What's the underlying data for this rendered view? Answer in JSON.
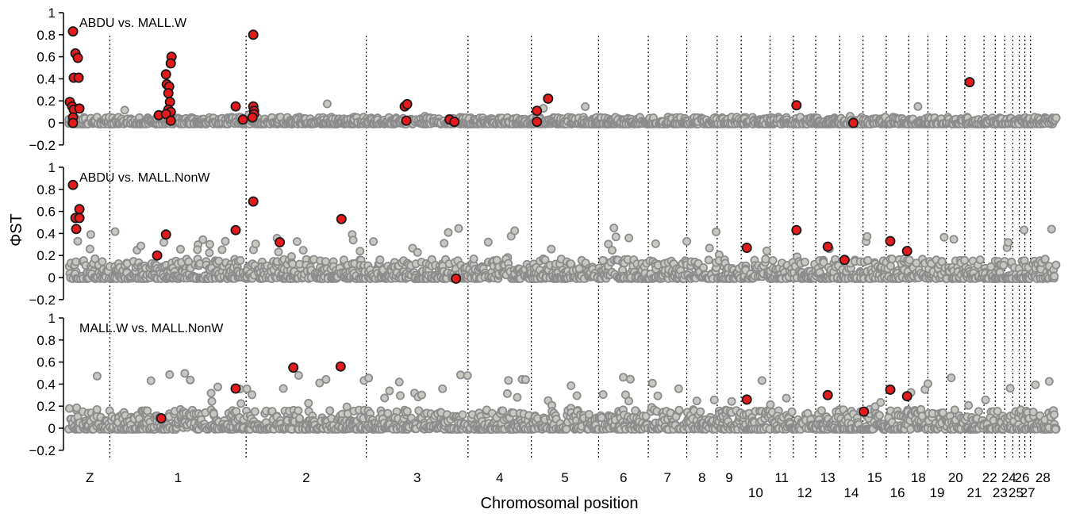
{
  "chart_data": {
    "type": "scatter",
    "xlabel": "Chromosomal position",
    "ylabel": "ΦST",
    "ylim": [
      -0.2,
      1
    ],
    "yticks": [
      "1",
      "0.8",
      "0.6",
      "0.4",
      "0.2",
      "0",
      "−0.2"
    ],
    "colors": {
      "background_point_fill": "#c8c8c2",
      "background_point_stroke": "#8c8c8c",
      "outlier_fill": "#e41a1c",
      "outlier_stroke": "#1a1a1a",
      "boundary_line": "#000000"
    },
    "chromosomes": [
      {
        "name": "Z",
        "start": 0,
        "end": 50,
        "label_row": 1
      },
      {
        "name": "1",
        "start": 50,
        "end": 220,
        "label_row": 1
      },
      {
        "name": "2",
        "start": 220,
        "end": 370,
        "label_row": 1
      },
      {
        "name": "3",
        "start": 370,
        "end": 497,
        "label_row": 1
      },
      {
        "name": "4",
        "start": 497,
        "end": 576,
        "label_row": 1
      },
      {
        "name": "5",
        "start": 576,
        "end": 660,
        "label_row": 1
      },
      {
        "name": "6",
        "start": 660,
        "end": 722,
        "label_row": 1
      },
      {
        "name": "7",
        "start": 722,
        "end": 770,
        "label_row": 1
      },
      {
        "name": "8",
        "start": 770,
        "end": 808,
        "label_row": 1
      },
      {
        "name": "9",
        "start": 808,
        "end": 838,
        "label_row": 1
      },
      {
        "name": "10",
        "start": 838,
        "end": 874,
        "label_row": 2
      },
      {
        "name": "11",
        "start": 874,
        "end": 903,
        "label_row": 1
      },
      {
        "name": "12",
        "start": 903,
        "end": 931,
        "label_row": 2
      },
      {
        "name": "13",
        "start": 931,
        "end": 961,
        "label_row": 1
      },
      {
        "name": "14",
        "start": 961,
        "end": 990,
        "label_row": 2
      },
      {
        "name": "15",
        "start": 990,
        "end": 1019,
        "label_row": 1
      },
      {
        "name": "16",
        "start": 1019,
        "end": 1047,
        "label_row": 2
      },
      {
        "name": "18",
        "start": 1047,
        "end": 1071,
        "label_row": 1
      },
      {
        "name": "19",
        "start": 1071,
        "end": 1094,
        "label_row": 2
      },
      {
        "name": "20",
        "start": 1094,
        "end": 1117,
        "label_row": 1
      },
      {
        "name": "21",
        "start": 1117,
        "end": 1141,
        "label_row": 2
      },
      {
        "name": "22",
        "start": 1141,
        "end": 1155,
        "label_row": 1
      },
      {
        "name": "23",
        "start": 1155,
        "end": 1167,
        "label_row": 2
      },
      {
        "name": "24",
        "start": 1167,
        "end": 1177,
        "label_row": 1
      },
      {
        "name": "25",
        "start": 1177,
        "end": 1185,
        "label_row": 2
      },
      {
        "name": "26",
        "start": 1185,
        "end": 1192,
        "label_row": 1
      },
      {
        "name": "27",
        "start": 1192,
        "end": 1199,
        "label_row": 2
      },
      {
        "name": "28",
        "start": 1199,
        "end": 1230,
        "label_row": 1
      }
    ],
    "panels": [
      {
        "name": "ABDU vs. MALL.W",
        "background": {
          "seed": 11,
          "pmin": 0.18,
          "pmax": 0.7,
          "hot_fraction": 0.006,
          "hot_max": 0.15
        },
        "outliers": [
          {
            "x": 4,
            "y": 0.83
          },
          {
            "x": 7,
            "y": 0.63
          },
          {
            "x": 10,
            "y": 0.59
          },
          {
            "x": 5,
            "y": 0.41
          },
          {
            "x": 11,
            "y": 0.41
          },
          {
            "x": 0,
            "y": 0.19
          },
          {
            "x": 3,
            "y": 0.15
          },
          {
            "x": 5,
            "y": 0.12
          },
          {
            "x": 12,
            "y": 0.13
          },
          {
            "x": 4,
            "y": 0.05
          },
          {
            "x": 4,
            "y": 0.0
          },
          {
            "x": 111,
            "y": 0.07
          },
          {
            "x": 127,
            "y": 0.6
          },
          {
            "x": 126,
            "y": 0.54
          },
          {
            "x": 120,
            "y": 0.44
          },
          {
            "x": 121,
            "y": 0.35
          },
          {
            "x": 124,
            "y": 0.33
          },
          {
            "x": 123,
            "y": 0.27
          },
          {
            "x": 125,
            "y": 0.19
          },
          {
            "x": 123,
            "y": 0.12
          },
          {
            "x": 126,
            "y": 0.1
          },
          {
            "x": 120,
            "y": 0.08
          },
          {
            "x": 126,
            "y": 0.02
          },
          {
            "x": 207,
            "y": 0.15
          },
          {
            "x": 229,
            "y": 0.8
          },
          {
            "x": 229,
            "y": 0.15
          },
          {
            "x": 230,
            "y": 0.11
          },
          {
            "x": 230,
            "y": 0.08
          },
          {
            "x": 216,
            "y": 0.03
          },
          {
            "x": 228,
            "y": 0.05
          },
          {
            "x": 418,
            "y": 0.15
          },
          {
            "x": 421,
            "y": 0.17
          },
          {
            "x": 420,
            "y": 0.02
          },
          {
            "x": 474,
            "y": 0.03
          },
          {
            "x": 480,
            "y": 0.01
          },
          {
            "x": 583,
            "y": 0.11
          },
          {
            "x": 583,
            "y": 0.01
          },
          {
            "x": 597,
            "y": 0.22
          },
          {
            "x": 907,
            "y": 0.16
          },
          {
            "x": 978,
            "y": 0.0
          },
          {
            "x": 1123,
            "y": 0.37
          }
        ]
      },
      {
        "name": "ABDU vs. MALL.NonW",
        "background": {
          "seed": 23,
          "pmin": 0.35,
          "pmax": 0.85,
          "hot_fraction": 0.05,
          "hot_max": 0.4
        },
        "outliers": [
          {
            "x": 4,
            "y": 0.84
          },
          {
            "x": 12,
            "y": 0.62
          },
          {
            "x": 7,
            "y": 0.54
          },
          {
            "x": 12,
            "y": 0.54
          },
          {
            "x": 8,
            "y": 0.44
          },
          {
            "x": 109,
            "y": 0.2
          },
          {
            "x": 120,
            "y": 0.39
          },
          {
            "x": 207,
            "y": 0.43
          },
          {
            "x": 229,
            "y": 0.69
          },
          {
            "x": 262,
            "y": 0.32
          },
          {
            "x": 339,
            "y": 0.53
          },
          {
            "x": 482,
            "y": -0.01
          },
          {
            "x": 845,
            "y": 0.27
          },
          {
            "x": 907,
            "y": 0.43
          },
          {
            "x": 946,
            "y": 0.28
          },
          {
            "x": 967,
            "y": 0.16
          },
          {
            "x": 1024,
            "y": 0.33
          },
          {
            "x": 1045,
            "y": 0.24
          }
        ]
      },
      {
        "name": "MALL.W vs. MALL.NonW",
        "background": {
          "seed": 37,
          "pmin": 0.4,
          "pmax": 0.9,
          "hot_fraction": 0.05,
          "hot_max": 0.45
        },
        "outliers": [
          {
            "x": 114,
            "y": 0.09
          },
          {
            "x": 207,
            "y": 0.36
          },
          {
            "x": 279,
            "y": 0.55
          },
          {
            "x": 338,
            "y": 0.56
          },
          {
            "x": 845,
            "y": 0.26
          },
          {
            "x": 946,
            "y": 0.3
          },
          {
            "x": 991,
            "y": 0.15
          },
          {
            "x": 1024,
            "y": 0.35
          },
          {
            "x": 1045,
            "y": 0.29
          }
        ]
      }
    ]
  }
}
